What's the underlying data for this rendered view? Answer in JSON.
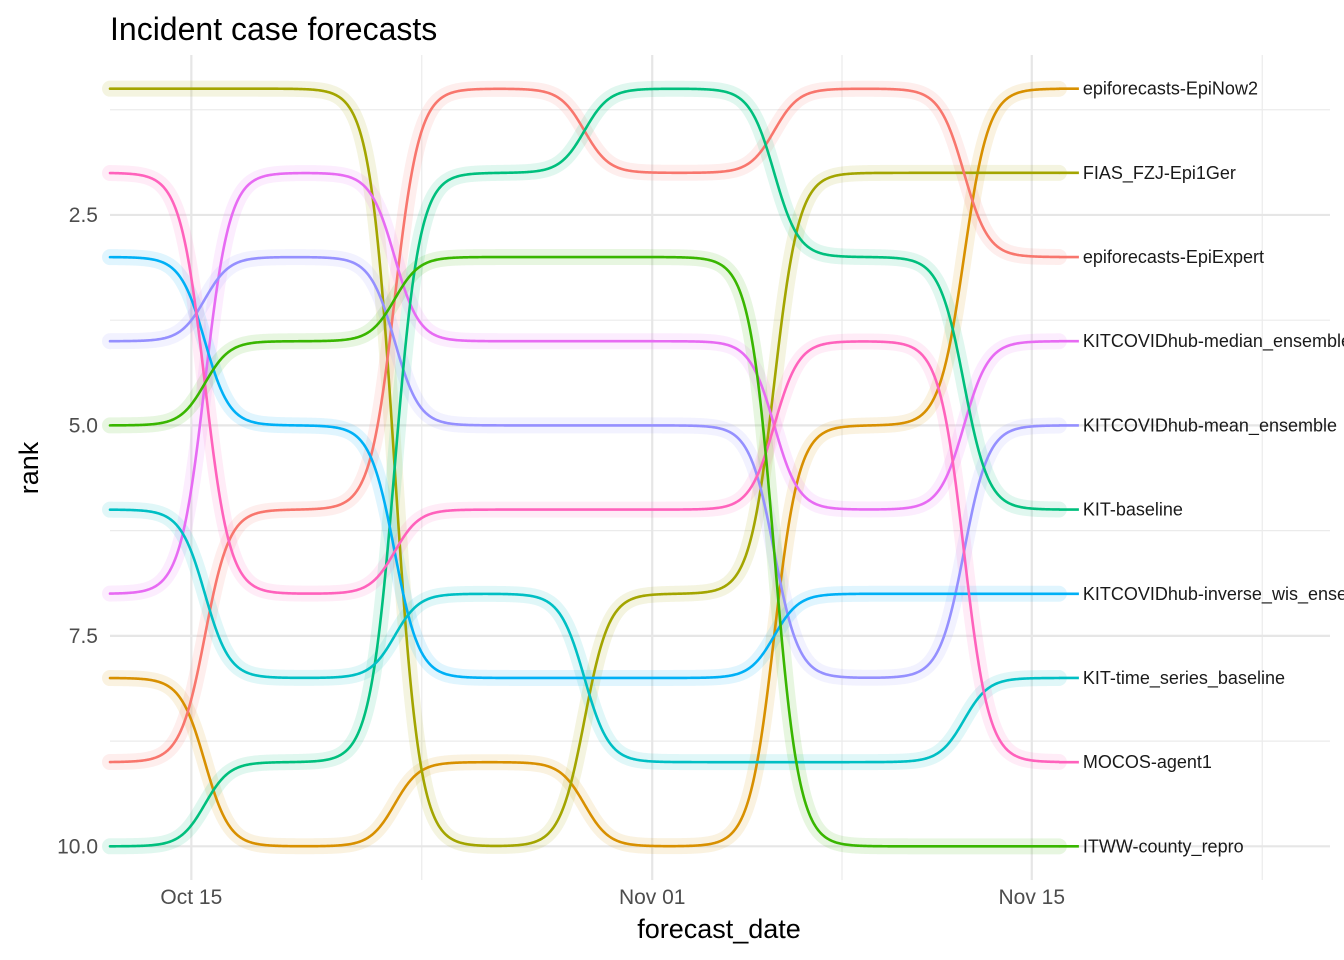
{
  "chart_data": {
    "type": "line",
    "title": "Incident case forecasts",
    "xlabel": "forecast_date",
    "ylabel": "rank",
    "x": [
      "2020-10-12",
      "2020-10-19",
      "2020-10-26",
      "2020-11-02",
      "2020-11-09",
      "2020-11-16"
    ],
    "xlim": [
      "2020-10-12",
      "2020-11-26"
    ],
    "ylim": [
      10.4,
      0.6
    ],
    "y_reversed": true,
    "x_ticks": [
      {
        "value": "2020-10-15",
        "label": "Oct 15"
      },
      {
        "value": "2020-11-01",
        "label": "Nov 01"
      },
      {
        "value": "2020-11-15",
        "label": "Nov 15"
      }
    ],
    "y_ticks": [
      {
        "value": 2.5,
        "label": "2.5"
      },
      {
        "value": 5.0,
        "label": "5.0"
      },
      {
        "value": 7.5,
        "label": "7.5"
      },
      {
        "value": 10.0,
        "label": "10.0"
      }
    ],
    "grid": true,
    "legend": "end-labels",
    "series": [
      {
        "name": "epiforecasts-EpiNow2",
        "color": "#D89000",
        "values": [
          8,
          10,
          9,
          10,
          5,
          1
        ]
      },
      {
        "name": "FIAS_FZJ-Epi1Ger",
        "color": "#A3A500",
        "values": [
          1,
          1,
          10,
          7,
          2,
          2
        ]
      },
      {
        "name": "epiforecasts-EpiExpert",
        "color": "#F8766D",
        "values": [
          9,
          6,
          1,
          2,
          1,
          3
        ]
      },
      {
        "name": "KITCOVIDhub-median_ensemble",
        "color": "#E76BF3",
        "values": [
          7,
          2,
          4,
          4,
          6,
          4
        ]
      },
      {
        "name": "KITCOVIDhub-mean_ensemble",
        "color": "#9590FF",
        "values": [
          4,
          3,
          5,
          5,
          8,
          5
        ]
      },
      {
        "name": "KIT-baseline",
        "color": "#00BF7D",
        "values": [
          10,
          9,
          2,
          1,
          3,
          6
        ]
      },
      {
        "name": "KITCOVIDhub-inverse_wis_ensemble",
        "color": "#00B0F6",
        "values": [
          3,
          5,
          8,
          8,
          7,
          7
        ]
      },
      {
        "name": "KIT-time_series_baseline",
        "color": "#00BFC4",
        "values": [
          6,
          8,
          7,
          9,
          9,
          8
        ]
      },
      {
        "name": "MOCOS-agent1",
        "color": "#FF62BC",
        "values": [
          2,
          7,
          6,
          6,
          4,
          9
        ]
      },
      {
        "name": "ITWW-county_repro",
        "color": "#39B600",
        "values": [
          5,
          4,
          3,
          3,
          10,
          10
        ]
      }
    ],
    "end_labels": [
      {
        "rank": 1,
        "label": "epiforecasts-EpiNow2"
      },
      {
        "rank": 2,
        "label": "FIAS_FZJ-Epi1Ger"
      },
      {
        "rank": 3,
        "label": "epiforecasts-EpiExpert"
      },
      {
        "rank": 4,
        "label": "KITCOVIDhub-median_ensemble"
      },
      {
        "rank": 5,
        "label": "KITCOVIDhub-mean_ensemble"
      },
      {
        "rank": 6,
        "label": "KIT-baseline"
      },
      {
        "rank": 7,
        "label": "KITCOVIDhub-inverse_wis_ensemb"
      },
      {
        "rank": 8,
        "label": "KIT-time_series_baseline"
      },
      {
        "rank": 9,
        "label": "MOCOS-agent1"
      },
      {
        "rank": 10,
        "label": "ITWW-county_repro"
      }
    ]
  }
}
